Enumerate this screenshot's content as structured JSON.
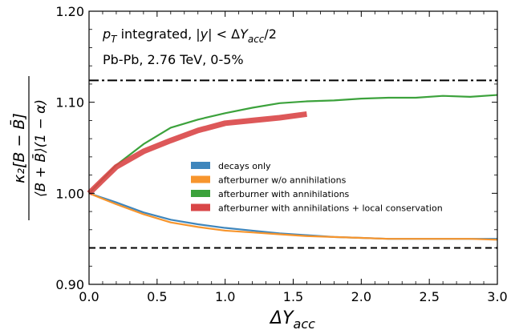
{
  "chart_data": {
    "type": "line",
    "xlabel_symbol": "ΔY",
    "xlabel_sub": "acc",
    "ylabel_line1": "κ₂[B − B̄]",
    "ylabel_line2": "⟨B + B̄⟩(1 − α)",
    "xlim": [
      0.0,
      3.0
    ],
    "ylim": [
      0.9,
      1.2
    ],
    "xticks": [
      0.0,
      0.5,
      1.0,
      1.5,
      2.0,
      2.5,
      3.0
    ],
    "xtick_labels": [
      "0.0",
      "0.5",
      "1.0",
      "1.5",
      "2.0",
      "2.5",
      "3.0"
    ],
    "yticks": [
      0.9,
      1.0,
      1.1,
      1.2
    ],
    "ytick_labels": [
      "0.90",
      "1.00",
      "1.10",
      "1.20"
    ],
    "grid": false,
    "legend_position": "center-right",
    "annotations": [
      {
        "id": "anno1",
        "parts": [
          {
            "t": "p",
            "style": "italic"
          },
          {
            "t": "T",
            "style": "italic-sub"
          },
          {
            "t": " integrated, |",
            "style": "normal"
          },
          {
            "t": "y",
            "style": "italic"
          },
          {
            "t": "| < Δ",
            "style": "normal"
          },
          {
            "t": "Y",
            "style": "italic"
          },
          {
            "t": "acc",
            "style": "italic-sub"
          },
          {
            "t": "/2",
            "style": "normal"
          }
        ]
      },
      {
        "id": "anno2",
        "parts": [
          {
            "t": "Pb-Pb, 2.76 TeV, 0-5%",
            "style": "normal"
          }
        ]
      }
    ],
    "reference_lines": [
      {
        "y": 1.124,
        "style": "dashdot",
        "color": "#000000"
      },
      {
        "y": 0.94,
        "style": "dashed",
        "color": "#000000"
      }
    ],
    "series": [
      {
        "name": "decays only",
        "color": "#3f86bc",
        "x": [
          0.0,
          0.2,
          0.4,
          0.6,
          0.8,
          1.0,
          1.2,
          1.4,
          1.6,
          1.8,
          2.0,
          2.2,
          2.4,
          2.6,
          2.8,
          3.0
        ],
        "y": [
          1.0,
          0.99,
          0.979,
          0.971,
          0.966,
          0.962,
          0.959,
          0.956,
          0.954,
          0.952,
          0.951,
          0.95,
          0.95,
          0.95,
          0.95,
          0.95
        ]
      },
      {
        "name": "afterburner w/o annihilations",
        "color": "#f7952d",
        "x": [
          0.0,
          0.2,
          0.4,
          0.6,
          0.8,
          1.0,
          1.2,
          1.4,
          1.6,
          1.8,
          2.0,
          2.2,
          2.4,
          2.6,
          2.8,
          3.0
        ],
        "y": [
          1.0,
          0.988,
          0.977,
          0.968,
          0.963,
          0.959,
          0.957,
          0.955,
          0.953,
          0.952,
          0.951,
          0.95,
          0.95,
          0.95,
          0.95,
          0.949
        ]
      },
      {
        "name": "afterburner with annihilations",
        "color": "#3ca23c",
        "x": [
          0.0,
          0.2,
          0.4,
          0.6,
          0.8,
          1.0,
          1.2,
          1.4,
          1.6,
          1.8,
          2.0,
          2.2,
          2.4,
          2.6,
          2.8,
          3.0
        ],
        "y": [
          1.0,
          1.031,
          1.054,
          1.072,
          1.081,
          1.088,
          1.094,
          1.099,
          1.101,
          1.102,
          1.104,
          1.105,
          1.105,
          1.107,
          1.106,
          1.108
        ]
      },
      {
        "name": "afterburner with annihilations + local conservation",
        "color": "#d94647",
        "band": true,
        "x": [
          0.0,
          0.2,
          0.4,
          0.6,
          0.8,
          1.0,
          1.2,
          1.4,
          1.6
        ],
        "y": [
          1.0,
          1.029,
          1.046,
          1.058,
          1.069,
          1.077,
          1.08,
          1.083,
          1.087
        ]
      }
    ]
  }
}
